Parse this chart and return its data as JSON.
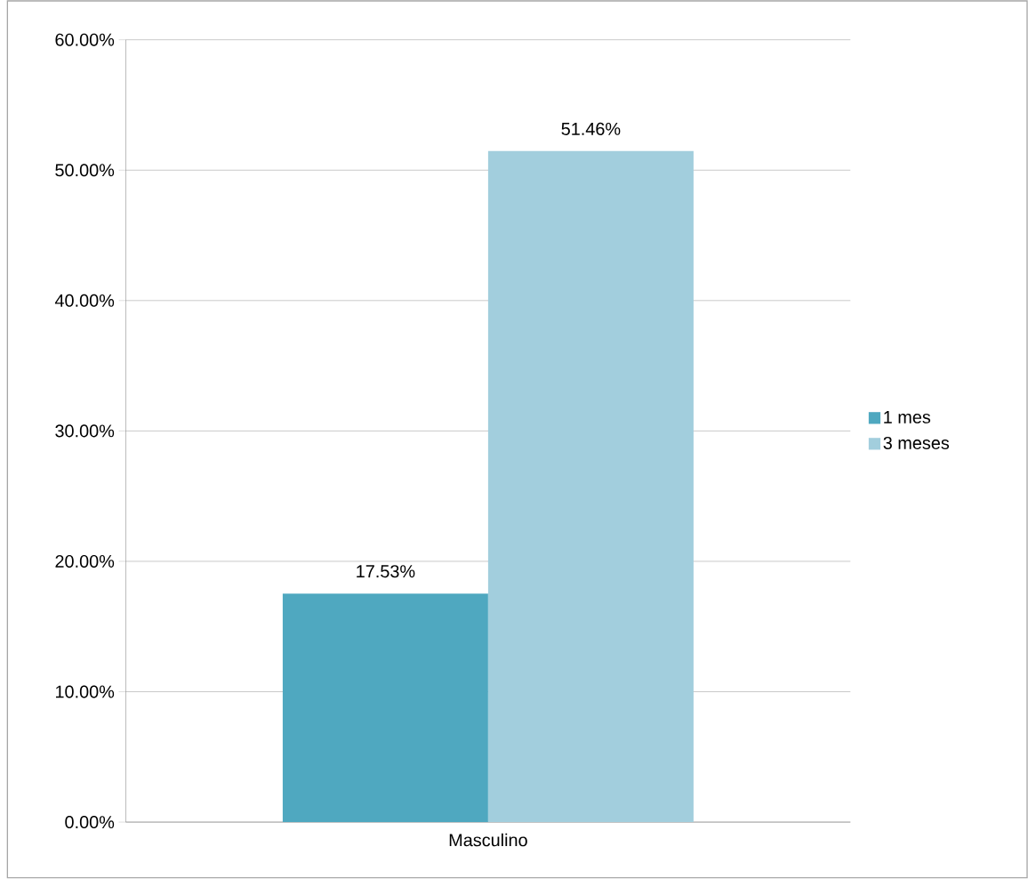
{
  "chart_data": {
    "type": "bar",
    "categories": [
      "Masculino"
    ],
    "series": [
      {
        "name": "1 mes",
        "color": "#4fa8c0",
        "values": [
          17.53
        ],
        "value_labels": [
          "17.53%"
        ]
      },
      {
        "name": "3 meses",
        "color": "#a2cedd",
        "values": [
          51.46
        ],
        "value_labels": [
          "51.46%"
        ]
      }
    ],
    "ylim": [
      0,
      60
    ],
    "yticks": [
      {
        "value": 0,
        "label": "0.00%"
      },
      {
        "value": 10,
        "label": "10.00%"
      },
      {
        "value": 20,
        "label": "20.00%"
      },
      {
        "value": 30,
        "label": "30.00%"
      },
      {
        "value": 40,
        "label": "40.00%"
      },
      {
        "value": 50,
        "label": "50.00%"
      },
      {
        "value": 60,
        "label": "60.00%"
      }
    ],
    "grid": "y",
    "legend": "right"
  }
}
